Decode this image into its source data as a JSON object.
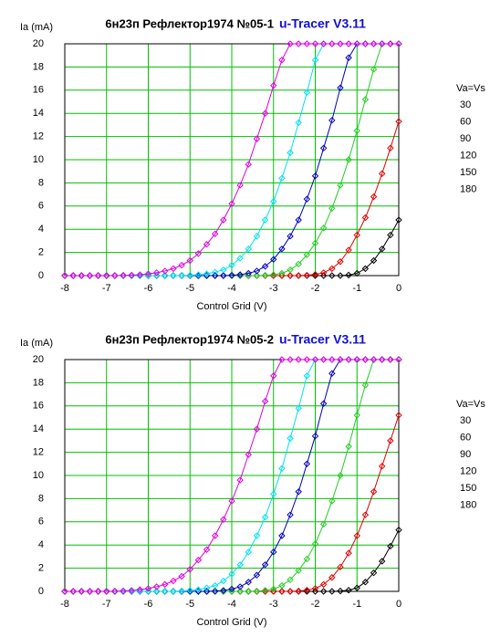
{
  "chart_data": [
    {
      "type": "line",
      "title": "6н23п Рефлектор1974 №05-1",
      "subtitle": "u-Tracer V3.11",
      "xlabel": "Control Grid (V)",
      "ylabel": "Ia (mA)",
      "legend_title": "Va=Vs",
      "grid": true,
      "xlim": [
        -8,
        0
      ],
      "ylim": [
        0,
        20
      ],
      "xticks": [
        -8,
        -7,
        -6,
        -5,
        -4,
        -3,
        -2,
        -1,
        0
      ],
      "yticks": [
        0,
        2,
        4,
        6,
        8,
        10,
        12,
        14,
        16,
        18,
        20
      ],
      "x": [
        -8,
        -7.8,
        -7.6,
        -7.4,
        -7.2,
        -7,
        -6.8,
        -6.6,
        -6.4,
        -6.2,
        -6,
        -5.8,
        -5.6,
        -5.4,
        -5.2,
        -5,
        -4.8,
        -4.6,
        -4.4,
        -4.2,
        -4,
        -3.8,
        -3.6,
        -3.4,
        -3.2,
        -3,
        -2.8,
        -2.6,
        -2.4,
        -2.2,
        -2,
        -1.8,
        -1.6,
        -1.4,
        -1.2,
        -1,
        -0.8,
        -0.6,
        -0.4,
        -0.2,
        0
      ],
      "series": [
        {
          "name": "30",
          "color": "#000000",
          "values": [
            0,
            0,
            0,
            0,
            0,
            0,
            0,
            0,
            0,
            0,
            0,
            0,
            0,
            0,
            0,
            0,
            0,
            0,
            0,
            0,
            0,
            0,
            0,
            0,
            0,
            0,
            0,
            0,
            0,
            0,
            0,
            0,
            0,
            0,
            0.05,
            0.2,
            0.6,
            1.3,
            2.3,
            3.5,
            4.8
          ]
        },
        {
          "name": "60",
          "color": "#e00000",
          "values": [
            0,
            0,
            0,
            0,
            0,
            0,
            0,
            0,
            0,
            0,
            0,
            0,
            0,
            0,
            0,
            0,
            0,
            0,
            0,
            0,
            0,
            0,
            0,
            0,
            0,
            0,
            0,
            0,
            0,
            0.03,
            0.1,
            0.25,
            0.6,
            1.2,
            2.2,
            3.5,
            5,
            6.8,
            8.8,
            11,
            13.3
          ]
        },
        {
          "name": "90",
          "color": "#22cc22",
          "values": [
            0,
            0,
            0,
            0,
            0,
            0,
            0,
            0,
            0,
            0,
            0,
            0,
            0,
            0,
            0,
            0,
            0,
            0,
            0,
            0,
            0,
            0,
            0,
            0,
            0.02,
            0.08,
            0.2,
            0.5,
            1.0,
            1.8,
            2.8,
            4.1,
            5.8,
            7.8,
            10,
            12.5,
            15.2,
            17.8,
            20,
            20,
            20
          ]
        },
        {
          "name": "120",
          "color": "#0000c0",
          "values": [
            0,
            0,
            0,
            0,
            0,
            0,
            0,
            0,
            0,
            0,
            0,
            0,
            0,
            0,
            0,
            0,
            0,
            0,
            0,
            0,
            0.03,
            0.08,
            0.2,
            0.4,
            0.8,
            1.4,
            2.3,
            3.4,
            4.8,
            6.6,
            8.6,
            11,
            13.4,
            16.2,
            18.8,
            20,
            20,
            20,
            20,
            20,
            20
          ]
        },
        {
          "name": "150",
          "color": "#00e0ee",
          "values": [
            0,
            0,
            0,
            0,
            0,
            0,
            0,
            0,
            0,
            0,
            0,
            0,
            0,
            0,
            0,
            0.03,
            0.08,
            0.15,
            0.3,
            0.5,
            0.9,
            1.5,
            2.3,
            3.4,
            4.8,
            6.4,
            8.4,
            10.6,
            13.2,
            15.8,
            18.6,
            20,
            20,
            20,
            20,
            20,
            20,
            20,
            20,
            20,
            20
          ]
        },
        {
          "name": "180",
          "color": "#dd00dd",
          "values": [
            0,
            0,
            0,
            0,
            0,
            0,
            0,
            0.02,
            0.04,
            0.08,
            0.15,
            0.25,
            0.4,
            0.6,
            0.9,
            1.3,
            1.9,
            2.7,
            3.6,
            4.8,
            6.2,
            7.8,
            9.6,
            11.8,
            14,
            16.4,
            18.6,
            20,
            20,
            20,
            20,
            20,
            20,
            20,
            20,
            20,
            20,
            20,
            20,
            20,
            20
          ]
        }
      ]
    },
    {
      "type": "line",
      "title": "6н23п Рефлектор1974 №05-2",
      "subtitle": "u-Tracer V3.11",
      "xlabel": "Control Grid (V)",
      "ylabel": "Ia (mA)",
      "legend_title": "Va=Vs",
      "grid": true,
      "xlim": [
        -8,
        0
      ],
      "ylim": [
        0,
        20
      ],
      "xticks": [
        -8,
        -7,
        -6,
        -5,
        -4,
        -3,
        -2,
        -1,
        0
      ],
      "yticks": [
        0,
        2,
        4,
        6,
        8,
        10,
        12,
        14,
        16,
        18,
        20
      ],
      "x": [
        -8,
        -7.8,
        -7.6,
        -7.4,
        -7.2,
        -7,
        -6.8,
        -6.6,
        -6.4,
        -6.2,
        -6,
        -5.8,
        -5.6,
        -5.4,
        -5.2,
        -5,
        -4.8,
        -4.6,
        -4.4,
        -4.2,
        -4,
        -3.8,
        -3.6,
        -3.4,
        -3.2,
        -3,
        -2.8,
        -2.6,
        -2.4,
        -2.2,
        -2,
        -1.8,
        -1.6,
        -1.4,
        -1.2,
        -1,
        -0.8,
        -0.6,
        -0.4,
        -0.2,
        0
      ],
      "series": [
        {
          "name": "30",
          "color": "#000000",
          "values": [
            0,
            0,
            0,
            0,
            0,
            0,
            0,
            0,
            0,
            0,
            0,
            0,
            0,
            0,
            0,
            0,
            0,
            0,
            0,
            0,
            0,
            0,
            0,
            0,
            0,
            0,
            0,
            0,
            0,
            0,
            0,
            0,
            0,
            0.03,
            0.1,
            0.3,
            0.8,
            1.6,
            2.6,
            3.9,
            5.3
          ]
        },
        {
          "name": "60",
          "color": "#e00000",
          "values": [
            0,
            0,
            0,
            0,
            0,
            0,
            0,
            0,
            0,
            0,
            0,
            0,
            0,
            0,
            0,
            0,
            0,
            0,
            0,
            0,
            0,
            0,
            0,
            0,
            0,
            0,
            0,
            0,
            0.03,
            0.1,
            0.25,
            0.6,
            1.2,
            2.1,
            3.3,
            4.8,
            6.6,
            8.6,
            10.8,
            13,
            15.2
          ]
        },
        {
          "name": "90",
          "color": "#22cc22",
          "values": [
            0,
            0,
            0,
            0,
            0,
            0,
            0,
            0,
            0,
            0,
            0,
            0,
            0,
            0,
            0,
            0,
            0,
            0,
            0,
            0,
            0,
            0,
            0,
            0.02,
            0.08,
            0.2,
            0.5,
            1.0,
            1.8,
            2.8,
            4.1,
            5.8,
            7.8,
            10,
            12.5,
            15.2,
            17.8,
            20,
            20,
            20,
            20
          ]
        },
        {
          "name": "120",
          "color": "#0000c0",
          "values": [
            0,
            0,
            0,
            0,
            0,
            0,
            0,
            0,
            0,
            0,
            0,
            0,
            0,
            0,
            0,
            0,
            0,
            0,
            0.03,
            0.08,
            0.2,
            0.4,
            0.8,
            1.4,
            2.3,
            3.4,
            4.8,
            6.6,
            8.6,
            11,
            13.4,
            16.2,
            18.8,
            20,
            20,
            20,
            20,
            20,
            20,
            20,
            20
          ]
        },
        {
          "name": "150",
          "color": "#00e0ee",
          "values": [
            0,
            0,
            0,
            0,
            0,
            0,
            0,
            0,
            0,
            0,
            0,
            0,
            0,
            0,
            0.03,
            0.08,
            0.15,
            0.3,
            0.5,
            0.9,
            1.5,
            2.3,
            3.4,
            4.8,
            6.4,
            8.4,
            10.6,
            13.2,
            15.8,
            18.6,
            20,
            20,
            20,
            20,
            20,
            20,
            20,
            20,
            20,
            20,
            20
          ]
        },
        {
          "name": "180",
          "color": "#dd00dd",
          "values": [
            0,
            0,
            0,
            0,
            0,
            0,
            0.02,
            0.04,
            0.08,
            0.15,
            0.25,
            0.4,
            0.6,
            0.9,
            1.3,
            1.9,
            2.7,
            3.6,
            4.8,
            6.2,
            7.8,
            9.6,
            11.8,
            14,
            16.4,
            18.6,
            20,
            20,
            20,
            20,
            20,
            20,
            20,
            20,
            20,
            20,
            20,
            20,
            20,
            20,
            20
          ]
        }
      ]
    }
  ]
}
